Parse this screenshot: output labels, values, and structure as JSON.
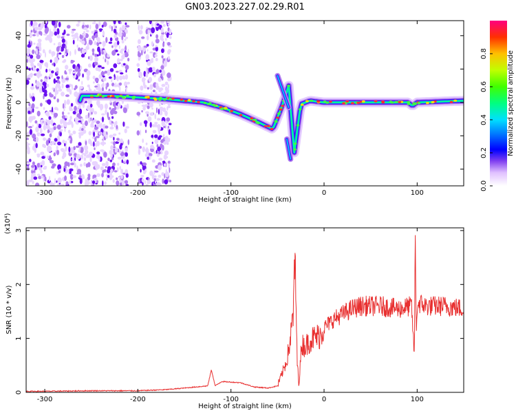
{
  "title": "GN03.2023.227.02.29.R01",
  "chart_data": [
    {
      "type": "heatmap",
      "xlabel": "Height of straight line (km)",
      "ylabel": "Frequency (Hz)",
      "xlim": [
        -320,
        150
      ],
      "ylim": [
        -50,
        49
      ],
      "xticks": [
        -300,
        -200,
        -100,
        0,
        100
      ],
      "yticks": [
        -40,
        -20,
        0,
        20,
        40
      ],
      "colorbar": {
        "label": "Normalized spectral amplitude",
        "range": [
          0,
          1
        ],
        "ticks": [
          "0.0",
          "0.2",
          "0.4",
          "0.6",
          "0.8"
        ],
        "colors": [
          "#ffffff",
          "#b070f0",
          "#5000ff",
          "#0000ff",
          "#00c8ff",
          "#00ff80",
          "#50ff00",
          "#ffff00",
          "#ff8000",
          "#ff0040",
          "#ff0080"
        ]
      },
      "ridge": {
        "name": "main spectral trace",
        "x": [
          -260,
          -230,
          -200,
          -170,
          -150,
          -130,
          -110,
          -90,
          -70,
          -55,
          -45,
          -38,
          -32,
          -25,
          -15,
          0,
          40,
          90,
          95,
          100,
          150
        ],
        "y": [
          4,
          4,
          3,
          2,
          1,
          0,
          -3,
          -7,
          -12,
          -16,
          -2,
          10,
          -30,
          -1,
          1,
          0,
          0,
          0,
          -2,
          0,
          1
        ]
      }
    },
    {
      "type": "line",
      "xlabel": "Height of straight line (km)",
      "ylabel": "SNR (10 * v/v)",
      "y_multiplier": "(x10⁴)",
      "xlim": [
        -320,
        150
      ],
      "ylim": [
        0,
        3.05
      ],
      "xticks": [
        -300,
        -200,
        -100,
        0,
        100
      ],
      "yticks": [
        0,
        1,
        2,
        3
      ],
      "color": "#e83030",
      "series": [
        {
          "x": [
            -320,
            -300,
            -250,
            -200,
            -170,
            -150,
            -125,
            -121,
            -117,
            -110,
            -90,
            -75,
            -60,
            -50,
            -45,
            -40,
            -36,
            -33,
            -31,
            -29,
            -27,
            -24,
            -20,
            -16,
            -12,
            -5,
            0,
            10,
            20,
            30,
            40,
            60,
            80,
            94,
            97,
            98,
            99,
            100,
            102,
            110,
            130,
            150
          ],
          "y": [
            0.02,
            0.02,
            0.03,
            0.03,
            0.05,
            0.08,
            0.12,
            0.42,
            0.12,
            0.2,
            0.18,
            0.1,
            0.08,
            0.12,
            0.35,
            0.6,
            1.0,
            1.5,
            2.52,
            0.6,
            0.15,
            0.9,
            0.85,
            0.95,
            1.0,
            1.05,
            1.2,
            1.35,
            1.45,
            1.55,
            1.6,
            1.6,
            1.55,
            1.6,
            0.65,
            3.05,
            1.0,
            1.6,
            1.65,
            1.6,
            1.6,
            1.55
          ]
        }
      ]
    }
  ]
}
